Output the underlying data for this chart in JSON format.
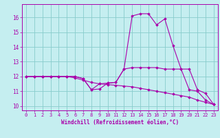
{
  "xlabel": "Windchill (Refroidissement éolien,°C)",
  "background_color": "#c5eef0",
  "line_color": "#aa00aa",
  "xlim": [
    -0.5,
    23.5
  ],
  "ylim": [
    9.7,
    16.9
  ],
  "xticks": [
    0,
    1,
    2,
    3,
    4,
    5,
    6,
    7,
    8,
    9,
    10,
    11,
    12,
    13,
    14,
    15,
    16,
    17,
    18,
    19,
    20,
    21,
    22,
    23
  ],
  "yticks": [
    10,
    11,
    12,
    13,
    14,
    15,
    16
  ],
  "grid_color": "#88cccc",
  "curve1_x": [
    0,
    1,
    2,
    3,
    4,
    5,
    6,
    7,
    8,
    9,
    10,
    11,
    12,
    13,
    14,
    15,
    16,
    17,
    18,
    19,
    20,
    21,
    22,
    23
  ],
  "curve1_y": [
    12.0,
    12.0,
    12.0,
    12.0,
    12.0,
    12.0,
    12.0,
    11.85,
    11.1,
    11.5,
    11.55,
    11.6,
    12.5,
    16.1,
    16.25,
    16.25,
    15.5,
    15.9,
    14.1,
    12.5,
    12.5,
    11.1,
    10.85,
    10.1
  ],
  "curve2_x": [
    0,
    1,
    2,
    3,
    4,
    5,
    6,
    7,
    8,
    9,
    10,
    11,
    12,
    13,
    14,
    15,
    16,
    17,
    18,
    19,
    20,
    21,
    22,
    23
  ],
  "curve2_y": [
    12.0,
    12.0,
    12.0,
    12.0,
    12.0,
    12.0,
    12.0,
    11.85,
    11.1,
    11.15,
    11.55,
    11.6,
    12.5,
    12.6,
    12.6,
    12.6,
    12.6,
    12.5,
    12.5,
    12.5,
    11.1,
    11.0,
    10.4,
    10.1
  ],
  "curve3_x": [
    0,
    1,
    2,
    3,
    4,
    5,
    6,
    7,
    8,
    9,
    10,
    11,
    12,
    13,
    14,
    15,
    16,
    17,
    18,
    19,
    20,
    21,
    22,
    23
  ],
  "curve3_y": [
    12.0,
    12.0,
    12.0,
    12.0,
    12.0,
    12.0,
    11.9,
    11.75,
    11.6,
    11.5,
    11.45,
    11.4,
    11.35,
    11.3,
    11.2,
    11.1,
    11.0,
    10.9,
    10.8,
    10.7,
    10.6,
    10.4,
    10.25,
    10.1
  ]
}
